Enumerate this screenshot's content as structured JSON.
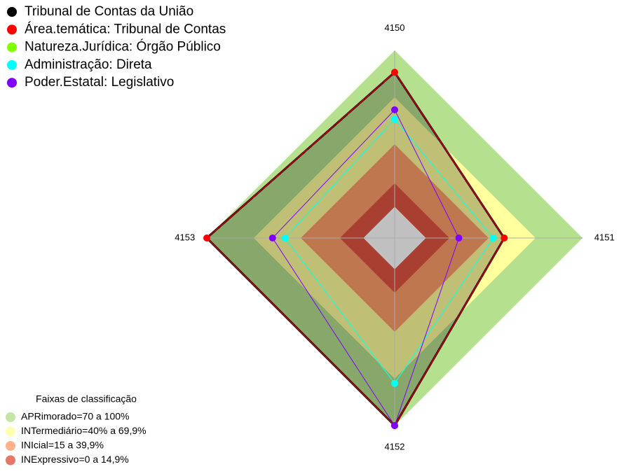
{
  "chart_data": {
    "type": "radar",
    "categories": [
      "4150",
      "4151",
      "4152",
      "4153"
    ],
    "ylim": [
      -20,
      100
    ],
    "series": [
      {
        "name": "Tribunal de Contas da União",
        "color": "#000000",
        "values": [
          86,
          50,
          100,
          100
        ]
      },
      {
        "name": "Área.temática: Tribunal de Contas",
        "color": "#ff0000",
        "values": [
          86,
          50,
          100,
          100
        ]
      },
      {
        "name": "Natureza.Jurídica: Órgão Público",
        "color": "#7fff00",
        "values": [
          56,
          43,
          73,
          50
        ]
      },
      {
        "name": "Administração: Direta",
        "color": "#00ffff",
        "values": [
          56,
          43,
          73,
          50
        ]
      },
      {
        "name": "Poder.Estatal: Legislativo",
        "color": "#8000ff",
        "values": [
          62,
          21,
          100,
          58
        ]
      }
    ],
    "bands_title": "Faixas de classificação",
    "bands": [
      {
        "label": "APRimorado=70 a 100%",
        "from": 70,
        "to": 100,
        "color": "#b5e08e"
      },
      {
        "label": "INTermediário=40% a 69,9%",
        "from": 40,
        "to": 70,
        "color": "#ffff9e"
      },
      {
        "label": "INIcial=15 a 39,9%",
        "from": 15,
        "to": 40,
        "color": "#ff9f6b"
      },
      {
        "label": "INExpressivo=0 a 14,9%",
        "from": 0,
        "to": 15,
        "color": "#e05540"
      }
    ]
  }
}
